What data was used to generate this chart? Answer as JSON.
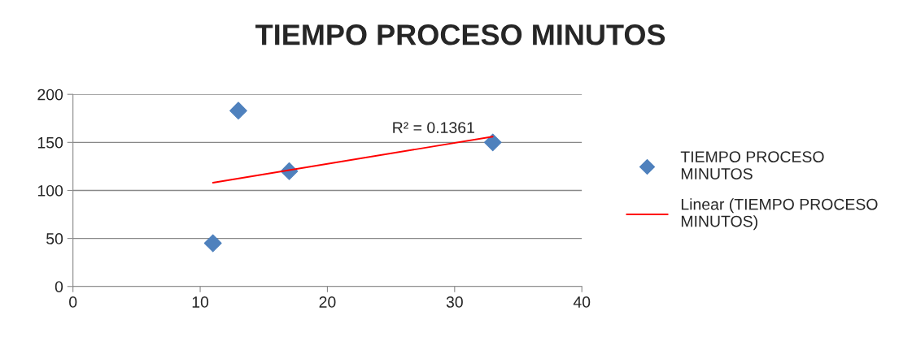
{
  "chart_data": {
    "type": "scatter",
    "title": "TIEMPO PROCESO MINUTOS",
    "series": [
      {
        "name": "TIEMPO PROCESO MINUTOS",
        "color": "#4f81bd",
        "marker": "diamond",
        "x": [
          11,
          13,
          17,
          33
        ],
        "values": [
          45,
          183,
          120,
          150
        ]
      },
      {
        "name": "Linear (TIEMPO PROCESO MINUTOS)",
        "type": "line",
        "color": "#ff0000",
        "marker": "none",
        "line_style": "solid",
        "x": [
          11,
          33
        ],
        "values": [
          108,
          156
        ]
      }
    ],
    "annotations": [
      "R² = 0.1361"
    ],
    "xlim": [
      0,
      40
    ],
    "xticks": [
      0,
      10,
      20,
      30,
      40
    ],
    "ylim": [
      0,
      200
    ],
    "yticks": [
      0,
      50,
      100,
      150,
      200
    ],
    "grid": "y",
    "legend": "right"
  }
}
